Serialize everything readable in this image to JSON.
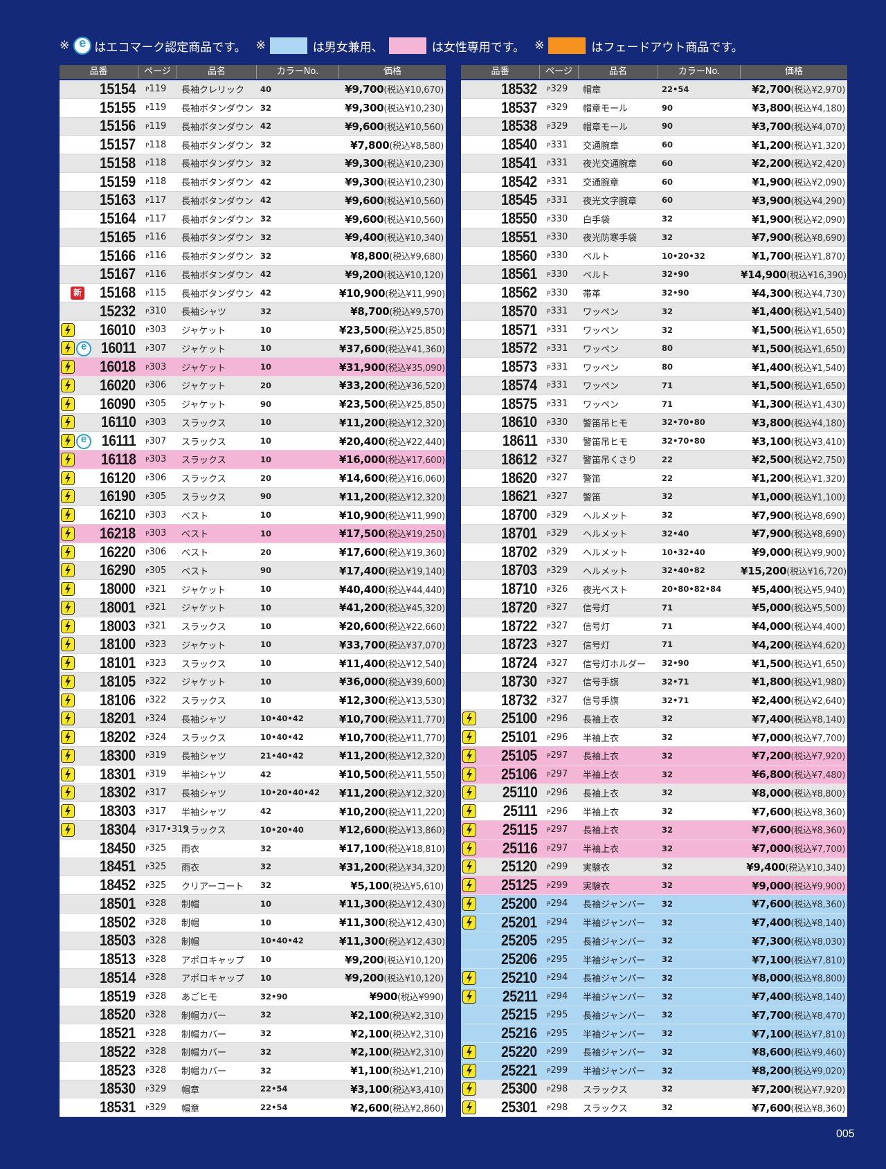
{
  "legend": {
    "note_mark": "※",
    "eco_text": "はエコマーク認定商品です。",
    "unisex_text": "は男女兼用、",
    "women_text": "は女性専用です。",
    "fadeout_text": "はフェードアウト商品です。",
    "colors": {
      "unisex": "#acd6f2",
      "women": "#f4b6d6",
      "fadeout": "#f6931e"
    }
  },
  "table": {
    "headers": [
      "品番",
      "ページ",
      "品名",
      "カラーNo.",
      "価格"
    ],
    "page_prefix": "P",
    "new_label": "新"
  },
  "left_rows": [
    {
      "no": "15154",
      "pg": "119",
      "nm": "長袖クレリック",
      "cl": "40",
      "pr": "¥9,700",
      "tx": "(税込¥10,670)"
    },
    {
      "no": "15155",
      "pg": "119",
      "nm": "長袖ボタンダウン",
      "cl": "32",
      "pr": "¥9,300",
      "tx": "(税込¥10,230)"
    },
    {
      "no": "15156",
      "pg": "119",
      "nm": "長袖ボタンダウン",
      "cl": "42",
      "pr": "¥9,600",
      "tx": "(税込¥10,560)"
    },
    {
      "no": "15157",
      "pg": "118",
      "nm": "長袖ボタンダウン",
      "cl": "32",
      "pr": "¥7,800",
      "tx": "(税込¥8,580)"
    },
    {
      "no": "15158",
      "pg": "118",
      "nm": "長袖ボタンダウン",
      "cl": "32",
      "pr": "¥9,300",
      "tx": "(税込¥10,230)"
    },
    {
      "no": "15159",
      "pg": "118",
      "nm": "長袖ボタンダウン",
      "cl": "42",
      "pr": "¥9,300",
      "tx": "(税込¥10,230)"
    },
    {
      "no": "15163",
      "pg": "117",
      "nm": "長袖ボタンダウン",
      "cl": "42",
      "pr": "¥9,600",
      "tx": "(税込¥10,560)"
    },
    {
      "no": "15164",
      "pg": "117",
      "nm": "長袖ボタンダウン",
      "cl": "32",
      "pr": "¥9,600",
      "tx": "(税込¥10,560)"
    },
    {
      "no": "15165",
      "pg": "116",
      "nm": "長袖ボタンダウン",
      "cl": "32",
      "pr": "¥9,400",
      "tx": "(税込¥10,340)"
    },
    {
      "no": "15166",
      "pg": "116",
      "nm": "長袖ボタンダウン",
      "cl": "32",
      "pr": "¥8,800",
      "tx": "(税込¥9,680)"
    },
    {
      "no": "15167",
      "pg": "116",
      "nm": "長袖ボタンダウン",
      "cl": "42",
      "pr": "¥9,200",
      "tx": "(税込¥10,120)"
    },
    {
      "no": "15168",
      "pg": "115",
      "nm": "長袖ボタンダウン",
      "cl": "42",
      "pr": "¥10,900",
      "tx": "(税込¥11,990)",
      "new": true
    },
    {
      "no": "15232",
      "pg": "310",
      "nm": "長袖シャツ",
      "cl": "32",
      "pr": "¥8,700",
      "tx": "(税込¥9,570)"
    },
    {
      "no": "16010",
      "pg": "303",
      "nm": "ジャケット",
      "cl": "10",
      "pr": "¥23,500",
      "tx": "(税込¥25,850)",
      "bolt": true
    },
    {
      "no": "16011",
      "pg": "307",
      "nm": "ジャケット",
      "cl": "10",
      "pr": "¥37,600",
      "tx": "(税込¥41,360)",
      "bolt": true,
      "eco": true
    },
    {
      "no": "16018",
      "pg": "303",
      "nm": "ジャケット",
      "cl": "10",
      "pr": "¥31,900",
      "tx": "(税込¥35,090)",
      "bolt": true,
      "hl": "pink"
    },
    {
      "no": "16020",
      "pg": "306",
      "nm": "ジャケット",
      "cl": "20",
      "pr": "¥33,200",
      "tx": "(税込¥36,520)",
      "bolt": true
    },
    {
      "no": "16090",
      "pg": "305",
      "nm": "ジャケット",
      "cl": "90",
      "pr": "¥23,500",
      "tx": "(税込¥25,850)",
      "bolt": true
    },
    {
      "no": "16110",
      "pg": "303",
      "nm": "スラックス",
      "cl": "10",
      "pr": "¥11,200",
      "tx": "(税込¥12,320)",
      "bolt": true
    },
    {
      "no": "16111",
      "pg": "307",
      "nm": "スラックス",
      "cl": "10",
      "pr": "¥20,400",
      "tx": "(税込¥22,440)",
      "bolt": true,
      "eco": true
    },
    {
      "no": "16118",
      "pg": "303",
      "nm": "スラックス",
      "cl": "10",
      "pr": "¥16,000",
      "tx": "(税込¥17,600)",
      "bolt": true,
      "hl": "pink"
    },
    {
      "no": "16120",
      "pg": "306",
      "nm": "スラックス",
      "cl": "20",
      "pr": "¥14,600",
      "tx": "(税込¥16,060)",
      "bolt": true
    },
    {
      "no": "16190",
      "pg": "305",
      "nm": "スラックス",
      "cl": "90",
      "pr": "¥11,200",
      "tx": "(税込¥12,320)",
      "bolt": true
    },
    {
      "no": "16210",
      "pg": "303",
      "nm": "ベスト",
      "cl": "10",
      "pr": "¥10,900",
      "tx": "(税込¥11,990)",
      "bolt": true
    },
    {
      "no": "16218",
      "pg": "303",
      "nm": "ベスト",
      "cl": "10",
      "pr": "¥17,500",
      "tx": "(税込¥19,250)",
      "bolt": true,
      "hl": "pink"
    },
    {
      "no": "16220",
      "pg": "306",
      "nm": "ベスト",
      "cl": "20",
      "pr": "¥17,600",
      "tx": "(税込¥19,360)",
      "bolt": true
    },
    {
      "no": "16290",
      "pg": "305",
      "nm": "ベスト",
      "cl": "90",
      "pr": "¥17,400",
      "tx": "(税込¥19,140)",
      "bolt": true
    },
    {
      "no": "18000",
      "pg": "321",
      "nm": "ジャケット",
      "cl": "10",
      "pr": "¥40,400",
      "tx": "(税込¥44,440)",
      "bolt": true
    },
    {
      "no": "18001",
      "pg": "321",
      "nm": "ジャケット",
      "cl": "10",
      "pr": "¥41,200",
      "tx": "(税込¥45,320)",
      "bolt": true
    },
    {
      "no": "18003",
      "pg": "321",
      "nm": "スラックス",
      "cl": "10",
      "pr": "¥20,600",
      "tx": "(税込¥22,660)",
      "bolt": true
    },
    {
      "no": "18100",
      "pg": "323",
      "nm": "ジャケット",
      "cl": "10",
      "pr": "¥33,700",
      "tx": "(税込¥37,070)",
      "bolt": true
    },
    {
      "no": "18101",
      "pg": "323",
      "nm": "スラックス",
      "cl": "10",
      "pr": "¥11,400",
      "tx": "(税込¥12,540)",
      "bolt": true
    },
    {
      "no": "18105",
      "pg": "322",
      "nm": "ジャケット",
      "cl": "10",
      "pr": "¥36,000",
      "tx": "(税込¥39,600)",
      "bolt": true
    },
    {
      "no": "18106",
      "pg": "322",
      "nm": "スラックス",
      "cl": "10",
      "pr": "¥12,300",
      "tx": "(税込¥13,530)",
      "bolt": true
    },
    {
      "no": "18201",
      "pg": "324",
      "nm": "長袖シャツ",
      "cl": "10•40•42",
      "pr": "¥10,700",
      "tx": "(税込¥11,770)",
      "bolt": true
    },
    {
      "no": "18202",
      "pg": "324",
      "nm": "スラックス",
      "cl": "10•40•42",
      "pr": "¥10,700",
      "tx": "(税込¥11,770)",
      "bolt": true
    },
    {
      "no": "18300",
      "pg": "319",
      "nm": "長袖シャツ",
      "cl": "21•40•42",
      "pr": "¥11,200",
      "tx": "(税込¥12,320)",
      "bolt": true
    },
    {
      "no": "18301",
      "pg": "319",
      "nm": "半袖シャツ",
      "cl": "42",
      "pr": "¥10,500",
      "tx": "(税込¥11,550)",
      "bolt": true
    },
    {
      "no": "18302",
      "pg": "317",
      "nm": "長袖シャツ",
      "cl": "10•20•40•42",
      "pr": "¥11,200",
      "tx": "(税込¥12,320)",
      "bolt": true
    },
    {
      "no": "18303",
      "pg": "317",
      "nm": "半袖シャツ",
      "cl": "42",
      "pr": "¥10,200",
      "tx": "(税込¥11,220)",
      "bolt": true
    },
    {
      "no": "18304",
      "pg": "317•319",
      "nm": "スラックス",
      "cl": "10•20•40",
      "pr": "¥12,600",
      "tx": "(税込¥13,860)",
      "bolt": true
    },
    {
      "no": "18450",
      "pg": "325",
      "nm": "雨衣",
      "cl": "32",
      "pr": "¥17,100",
      "tx": "(税込¥18,810)"
    },
    {
      "no": "18451",
      "pg": "325",
      "nm": "雨衣",
      "cl": "32",
      "pr": "¥31,200",
      "tx": "(税込¥34,320)"
    },
    {
      "no": "18452",
      "pg": "325",
      "nm": "クリアーコート",
      "cl": "32",
      "pr": "¥5,100",
      "tx": "(税込¥5,610)"
    },
    {
      "no": "18501",
      "pg": "328",
      "nm": "制帽",
      "cl": "10",
      "pr": "¥11,300",
      "tx": "(税込¥12,430)"
    },
    {
      "no": "18502",
      "pg": "328",
      "nm": "制帽",
      "cl": "10",
      "pr": "¥11,300",
      "tx": "(税込¥12,430)"
    },
    {
      "no": "18503",
      "pg": "328",
      "nm": "制帽",
      "cl": "10•40•42",
      "pr": "¥11,300",
      "tx": "(税込¥12,430)"
    },
    {
      "no": "18513",
      "pg": "328",
      "nm": "アポロキャップ",
      "cl": "10",
      "pr": "¥9,200",
      "tx": "(税込¥10,120)"
    },
    {
      "no": "18514",
      "pg": "328",
      "nm": "アポロキャップ",
      "cl": "10",
      "pr": "¥9,200",
      "tx": "(税込¥10,120)"
    },
    {
      "no": "18519",
      "pg": "328",
      "nm": "あごヒモ",
      "cl": "32•90",
      "pr": "¥900",
      "tx": "(税込¥990)"
    },
    {
      "no": "18520",
      "pg": "328",
      "nm": "制帽カバー",
      "cl": "32",
      "pr": "¥2,100",
      "tx": "(税込¥2,310)"
    },
    {
      "no": "18521",
      "pg": "328",
      "nm": "制帽カバー",
      "cl": "32",
      "pr": "¥2,100",
      "tx": "(税込¥2,310)"
    },
    {
      "no": "18522",
      "pg": "328",
      "nm": "制帽カバー",
      "cl": "32",
      "pr": "¥2,100",
      "tx": "(税込¥2,310)"
    },
    {
      "no": "18523",
      "pg": "328",
      "nm": "制帽カバー",
      "cl": "32",
      "pr": "¥1,100",
      "tx": "(税込¥1,210)"
    },
    {
      "no": "18530",
      "pg": "329",
      "nm": "帽章",
      "cl": "22•54",
      "pr": "¥3,100",
      "tx": "(税込¥3,410)"
    },
    {
      "no": "18531",
      "pg": "329",
      "nm": "帽章",
      "cl": "22•54",
      "pr": "¥2,600",
      "tx": "(税込¥2,860)"
    }
  ],
  "right_rows": [
    {
      "no": "18532",
      "pg": "329",
      "nm": "帽章",
      "cl": "22•54",
      "pr": "¥2,700",
      "tx": "(税込¥2,970)"
    },
    {
      "no": "18537",
      "pg": "329",
      "nm": "帽章モール",
      "cl": "90",
      "pr": "¥3,800",
      "tx": "(税込¥4,180)"
    },
    {
      "no": "18538",
      "pg": "329",
      "nm": "帽章モール",
      "cl": "90",
      "pr": "¥3,700",
      "tx": "(税込¥4,070)"
    },
    {
      "no": "18540",
      "pg": "331",
      "nm": "交通腕章",
      "cl": "60",
      "pr": "¥1,200",
      "tx": "(税込¥1,320)"
    },
    {
      "no": "18541",
      "pg": "331",
      "nm": "夜光交通腕章",
      "cl": "60",
      "pr": "¥2,200",
      "tx": "(税込¥2,420)"
    },
    {
      "no": "18542",
      "pg": "331",
      "nm": "交通腕章",
      "cl": "60",
      "pr": "¥1,900",
      "tx": "(税込¥2,090)"
    },
    {
      "no": "18545",
      "pg": "331",
      "nm": "夜光文字腕章",
      "cl": "60",
      "pr": "¥3,900",
      "tx": "(税込¥4,290)"
    },
    {
      "no": "18550",
      "pg": "330",
      "nm": "白手袋",
      "cl": "32",
      "pr": "¥1,900",
      "tx": "(税込¥2,090)"
    },
    {
      "no": "18551",
      "pg": "330",
      "nm": "夜光防寒手袋",
      "cl": "32",
      "pr": "¥7,900",
      "tx": "(税込¥8,690)"
    },
    {
      "no": "18560",
      "pg": "330",
      "nm": "ベルト",
      "cl": "10•20•32",
      "pr": "¥1,700",
      "tx": "(税込¥1,870)"
    },
    {
      "no": "18561",
      "pg": "330",
      "nm": "ベルト",
      "cl": "32•90",
      "pr": "¥14,900",
      "tx": "(税込¥16,390)"
    },
    {
      "no": "18562",
      "pg": "330",
      "nm": "帯革",
      "cl": "32•90",
      "pr": "¥4,300",
      "tx": "(税込¥4,730)"
    },
    {
      "no": "18570",
      "pg": "331",
      "nm": "ワッペン",
      "cl": "32",
      "pr": "¥1,400",
      "tx": "(税込¥1,540)"
    },
    {
      "no": "18571",
      "pg": "331",
      "nm": "ワッペン",
      "cl": "32",
      "pr": "¥1,500",
      "tx": "(税込¥1,650)"
    },
    {
      "no": "18572",
      "pg": "331",
      "nm": "ワッペン",
      "cl": "80",
      "pr": "¥1,500",
      "tx": "(税込¥1,650)"
    },
    {
      "no": "18573",
      "pg": "331",
      "nm": "ワッペン",
      "cl": "80",
      "pr": "¥1,400",
      "tx": "(税込¥1,540)"
    },
    {
      "no": "18574",
      "pg": "331",
      "nm": "ワッペン",
      "cl": "71",
      "pr": "¥1,500",
      "tx": "(税込¥1,650)"
    },
    {
      "no": "18575",
      "pg": "331",
      "nm": "ワッペン",
      "cl": "71",
      "pr": "¥1,300",
      "tx": "(税込¥1,430)"
    },
    {
      "no": "18610",
      "pg": "330",
      "nm": "警笛吊ヒモ",
      "cl": "32•70•80",
      "pr": "¥3,800",
      "tx": "(税込¥4,180)"
    },
    {
      "no": "18611",
      "pg": "330",
      "nm": "警笛吊ヒモ",
      "cl": "32•70•80",
      "pr": "¥3,100",
      "tx": "(税込¥3,410)"
    },
    {
      "no": "18612",
      "pg": "327",
      "nm": "警笛吊くさり",
      "cl": "22",
      "pr": "¥2,500",
      "tx": "(税込¥2,750)"
    },
    {
      "no": "18620",
      "pg": "327",
      "nm": "警笛",
      "cl": "22",
      "pr": "¥1,200",
      "tx": "(税込¥1,320)"
    },
    {
      "no": "18621",
      "pg": "327",
      "nm": "警笛",
      "cl": "32",
      "pr": "¥1,000",
      "tx": "(税込¥1,100)"
    },
    {
      "no": "18700",
      "pg": "329",
      "nm": "ヘルメット",
      "cl": "32",
      "pr": "¥7,900",
      "tx": "(税込¥8,690)"
    },
    {
      "no": "18701",
      "pg": "329",
      "nm": "ヘルメット",
      "cl": "32•40",
      "pr": "¥7,900",
      "tx": "(税込¥8,690)"
    },
    {
      "no": "18702",
      "pg": "329",
      "nm": "ヘルメット",
      "cl": "10•32•40",
      "pr": "¥9,000",
      "tx": "(税込¥9,900)"
    },
    {
      "no": "18703",
      "pg": "329",
      "nm": "ヘルメット",
      "cl": "32•40•82",
      "pr": "¥15,200",
      "tx": "(税込¥16,720)"
    },
    {
      "no": "18710",
      "pg": "326",
      "nm": "夜光ベスト",
      "cl": "20•80•82•84",
      "pr": "¥5,400",
      "tx": "(税込¥5,940)"
    },
    {
      "no": "18720",
      "pg": "327",
      "nm": "信号灯",
      "cl": "71",
      "pr": "¥5,000",
      "tx": "(税込¥5,500)"
    },
    {
      "no": "18722",
      "pg": "327",
      "nm": "信号灯",
      "cl": "71",
      "pr": "¥4,000",
      "tx": "(税込¥4,400)"
    },
    {
      "no": "18723",
      "pg": "327",
      "nm": "信号灯",
      "cl": "71",
      "pr": "¥4,200",
      "tx": "(税込¥4,620)"
    },
    {
      "no": "18724",
      "pg": "327",
      "nm": "信号灯ホルダー",
      "cl": "32•90",
      "pr": "¥1,500",
      "tx": "(税込¥1,650)"
    },
    {
      "no": "18730",
      "pg": "327",
      "nm": "信号手旗",
      "cl": "32•71",
      "pr": "¥1,800",
      "tx": "(税込¥1,980)"
    },
    {
      "no": "18732",
      "pg": "327",
      "nm": "信号手旗",
      "cl": "32•71",
      "pr": "¥2,400",
      "tx": "(税込¥2,640)"
    },
    {
      "no": "25100",
      "pg": "296",
      "nm": "長袖上衣",
      "cl": "32",
      "pr": "¥7,400",
      "tx": "(税込¥8,140)",
      "bolt": true
    },
    {
      "no": "25101",
      "pg": "296",
      "nm": "半袖上衣",
      "cl": "32",
      "pr": "¥7,000",
      "tx": "(税込¥7,700)",
      "bolt": true
    },
    {
      "no": "25105",
      "pg": "297",
      "nm": "長袖上衣",
      "cl": "32",
      "pr": "¥7,200",
      "tx": "(税込¥7,920)",
      "bolt": true,
      "hl": "pink"
    },
    {
      "no": "25106",
      "pg": "297",
      "nm": "半袖上衣",
      "cl": "32",
      "pr": "¥6,800",
      "tx": "(税込¥7,480)",
      "bolt": true,
      "hl": "pink"
    },
    {
      "no": "25110",
      "pg": "296",
      "nm": "長袖上衣",
      "cl": "32",
      "pr": "¥8,000",
      "tx": "(税込¥8,800)",
      "bolt": true
    },
    {
      "no": "25111",
      "pg": "296",
      "nm": "半袖上衣",
      "cl": "32",
      "pr": "¥7,600",
      "tx": "(税込¥8,360)",
      "bolt": true
    },
    {
      "no": "25115",
      "pg": "297",
      "nm": "長袖上衣",
      "cl": "32",
      "pr": "¥7,600",
      "tx": "(税込¥8,360)",
      "bolt": true,
      "hl": "pink"
    },
    {
      "no": "25116",
      "pg": "297",
      "nm": "半袖上衣",
      "cl": "32",
      "pr": "¥7,000",
      "tx": "(税込¥7,700)",
      "bolt": true,
      "hl": "pink"
    },
    {
      "no": "25120",
      "pg": "299",
      "nm": "実験衣",
      "cl": "32",
      "pr": "¥9,400",
      "tx": "(税込¥10,340)",
      "bolt": true
    },
    {
      "no": "25125",
      "pg": "299",
      "nm": "実験衣",
      "cl": "32",
      "pr": "¥9,000",
      "tx": "(税込¥9,900)",
      "bolt": true,
      "hl": "pink"
    },
    {
      "no": "25200",
      "pg": "294",
      "nm": "長袖ジャンパー",
      "cl": "32",
      "pr": "¥7,600",
      "tx": "(税込¥8,360)",
      "bolt": true,
      "hl": "blue"
    },
    {
      "no": "25201",
      "pg": "294",
      "nm": "半袖ジャンパー",
      "cl": "32",
      "pr": "¥7,400",
      "tx": "(税込¥8,140)",
      "bolt": true,
      "hl": "blue"
    },
    {
      "no": "25205",
      "pg": "295",
      "nm": "長袖ジャンパー",
      "cl": "32",
      "pr": "¥7,300",
      "tx": "(税込¥8,030)",
      "hl": "blue"
    },
    {
      "no": "25206",
      "pg": "295",
      "nm": "半袖ジャンパー",
      "cl": "32",
      "pr": "¥7,100",
      "tx": "(税込¥7,810)",
      "hl": "blue"
    },
    {
      "no": "25210",
      "pg": "294",
      "nm": "長袖ジャンパー",
      "cl": "32",
      "pr": "¥8,000",
      "tx": "(税込¥8,800)",
      "bolt": true,
      "hl": "blue"
    },
    {
      "no": "25211",
      "pg": "294",
      "nm": "半袖ジャンパー",
      "cl": "32",
      "pr": "¥7,400",
      "tx": "(税込¥8,140)",
      "bolt": true,
      "hl": "blue"
    },
    {
      "no": "25215",
      "pg": "295",
      "nm": "長袖ジャンパー",
      "cl": "32",
      "pr": "¥7,700",
      "tx": "(税込¥8,470)",
      "hl": "blue"
    },
    {
      "no": "25216",
      "pg": "295",
      "nm": "半袖ジャンパー",
      "cl": "32",
      "pr": "¥7,100",
      "tx": "(税込¥7,810)",
      "hl": "blue"
    },
    {
      "no": "25220",
      "pg": "299",
      "nm": "長袖ジャンパー",
      "cl": "32",
      "pr": "¥8,600",
      "tx": "(税込¥9,460)",
      "bolt": true,
      "hl": "blue"
    },
    {
      "no": "25221",
      "pg": "299",
      "nm": "半袖ジャンパー",
      "cl": "32",
      "pr": "¥8,200",
      "tx": "(税込¥9,020)",
      "bolt": true,
      "hl": "blue"
    },
    {
      "no": "25300",
      "pg": "298",
      "nm": "スラックス",
      "cl": "32",
      "pr": "¥7,200",
      "tx": "(税込¥7,920)",
      "bolt": true
    },
    {
      "no": "25301",
      "pg": "298",
      "nm": "スラックス",
      "cl": "32",
      "pr": "¥7,600",
      "tx": "(税込¥8,360)",
      "bolt": true
    }
  ],
  "footer": {
    "page_number": "005"
  }
}
